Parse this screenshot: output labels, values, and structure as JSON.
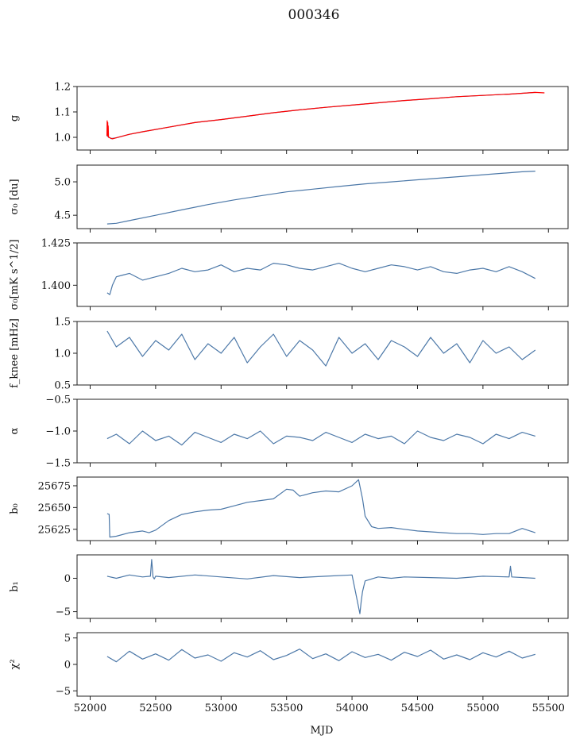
{
  "chart_data": {
    "type": "line",
    "title": "000346",
    "xlabel": "MJD",
    "xlim": [
      51900,
      55650
    ],
    "xticks": [
      52000,
      52500,
      53000,
      53500,
      54000,
      54500,
      55000,
      55500
    ],
    "series_color": "#4c78a8",
    "overlay_color": "#ff0000",
    "panels": [
      {
        "ylabel": "g",
        "ylim": [
          0.95,
          1.2
        ],
        "yticks": [
          "1.0",
          "1.1",
          "1.2"
        ],
        "ytick_values": [
          1.0,
          1.1,
          1.2
        ],
        "series": [
          {
            "color": "#4c78a8",
            "x": [
              52130,
              52160,
              52200,
              52300,
              52400,
              52600,
              52800,
              53000,
              53200,
              53400,
              53600,
              53800,
              54000,
              54200,
              54400,
              54600,
              54800,
              55000,
              55200,
              55400
            ],
            "y": [
              1.005,
              0.995,
              0.998,
              1.012,
              1.022,
              1.04,
              1.058,
              1.07,
              1.083,
              1.097,
              1.108,
              1.118,
              1.127,
              1.136,
              1.145,
              1.152,
              1.16,
              1.165,
              1.17,
              1.177
            ]
          },
          {
            "color": "#ff0000",
            "x": [
              52128,
              52130,
              52132,
              52134,
              52136,
              52138,
              52140,
              52150,
              52170,
              52200,
              52300,
              52400,
              52600,
              52800,
              53000,
              53200,
              53400,
              53600,
              53800,
              54000,
              54200,
              54400,
              54600,
              54800,
              55000,
              55200,
              55400,
              55470
            ],
            "y": [
              1.005,
              1.065,
              1.01,
              1.058,
              1.005,
              1.045,
              1.0,
              0.998,
              0.994,
              0.998,
              1.012,
              1.022,
              1.04,
              1.058,
              1.07,
              1.083,
              1.097,
              1.108,
              1.118,
              1.127,
              1.136,
              1.145,
              1.152,
              1.16,
              1.165,
              1.17,
              1.177,
              1.175
            ]
          }
        ]
      },
      {
        "ylabel": "σ₀ [du]",
        "ylim": [
          4.3,
          5.25
        ],
        "yticks": [
          "4.5",
          "5.0"
        ],
        "ytick_values": [
          4.5,
          5.0
        ],
        "series": [
          {
            "color": "#4c78a8",
            "x": [
              52130,
              52200,
              52300,
              52500,
              52700,
              52900,
              53100,
              53300,
              53500,
              53700,
              53900,
              54100,
              54300,
              54500,
              54700,
              54900,
              55100,
              55300,
              55400
            ],
            "y": [
              4.37,
              4.38,
              4.42,
              4.5,
              4.58,
              4.66,
              4.73,
              4.79,
              4.85,
              4.89,
              4.93,
              4.97,
              5.0,
              5.03,
              5.06,
              5.09,
              5.12,
              5.15,
              5.16
            ]
          }
        ]
      },
      {
        "ylabel": "σ₀[mK s^1/2]",
        "ylim": [
          1.3875,
          1.425
        ],
        "yticks": [
          "1.400",
          "1.425"
        ],
        "ytick_values": [
          1.4,
          1.425
        ],
        "series": [
          {
            "color": "#4c78a8",
            "x": [
              52130,
              52150,
              52170,
              52200,
              52250,
              52300,
              52400,
              52500,
              52600,
              52700,
              52800,
              52900,
              53000,
              53100,
              53200,
              53300,
              53400,
              53500,
              53600,
              53700,
              53800,
              53900,
              54000,
              54100,
              54200,
              54300,
              54400,
              54500,
              54600,
              54700,
              54800,
              54900,
              55000,
              55100,
              55200,
              55300,
              55400
            ],
            "y": [
              1.3955,
              1.3945,
              1.4,
              1.405,
              1.406,
              1.407,
              1.403,
              1.405,
              1.407,
              1.41,
              1.408,
              1.409,
              1.412,
              1.408,
              1.41,
              1.409,
              1.413,
              1.412,
              1.41,
              1.409,
              1.411,
              1.413,
              1.41,
              1.408,
              1.41,
              1.412,
              1.411,
              1.409,
              1.411,
              1.408,
              1.407,
              1.409,
              1.41,
              1.408,
              1.411,
              1.408,
              1.404
            ]
          }
        ]
      },
      {
        "ylabel": "f_knee [mHz]",
        "ylim": [
          0.5,
          1.5
        ],
        "yticks": [
          "0.5",
          "1.0",
          "1.5"
        ],
        "ytick_values": [
          0.5,
          1.0,
          1.5
        ],
        "series": [
          {
            "color": "#4c78a8",
            "x": [
              52130,
              52200,
              52300,
              52400,
              52500,
              52600,
              52700,
              52800,
              52900,
              53000,
              53100,
              53200,
              53300,
              53400,
              53500,
              53600,
              53700,
              53800,
              53900,
              54000,
              54100,
              54200,
              54300,
              54400,
              54500,
              54600,
              54700,
              54800,
              54900,
              55000,
              55100,
              55200,
              55300,
              55400
            ],
            "y": [
              1.35,
              1.1,
              1.25,
              0.95,
              1.2,
              1.05,
              1.3,
              0.9,
              1.15,
              1.0,
              1.25,
              0.85,
              1.1,
              1.3,
              0.95,
              1.2,
              1.05,
              0.8,
              1.25,
              1.0,
              1.15,
              0.9,
              1.2,
              1.1,
              0.95,
              1.25,
              1.0,
              1.15,
              0.85,
              1.2,
              1.0,
              1.1,
              0.9,
              1.05
            ]
          }
        ]
      },
      {
        "ylabel": "α",
        "ylim": [
          -1.5,
          -0.5
        ],
        "yticks": [
          "−1.5",
          "−1.0",
          "−0.5"
        ],
        "ytick_values": [
          -1.5,
          -1.0,
          -0.5
        ],
        "series": [
          {
            "color": "#4c78a8",
            "x": [
              52130,
              52200,
              52300,
              52400,
              52500,
              52600,
              52700,
              52800,
              52900,
              53000,
              53100,
              53200,
              53300,
              53400,
              53500,
              53600,
              53700,
              53800,
              53900,
              54000,
              54100,
              54200,
              54300,
              54400,
              54500,
              54600,
              54700,
              54800,
              54900,
              55000,
              55100,
              55200,
              55300,
              55400
            ],
            "y": [
              -1.12,
              -1.05,
              -1.2,
              -1.0,
              -1.15,
              -1.08,
              -1.22,
              -1.02,
              -1.1,
              -1.18,
              -1.05,
              -1.12,
              -1.0,
              -1.2,
              -1.08,
              -1.1,
              -1.15,
              -1.02,
              -1.1,
              -1.18,
              -1.05,
              -1.12,
              -1.08,
              -1.2,
              -1.0,
              -1.1,
              -1.15,
              -1.05,
              -1.1,
              -1.2,
              -1.05,
              -1.12,
              -1.02,
              -1.08
            ]
          }
        ]
      },
      {
        "ylabel": "b₀",
        "ylim": [
          25612,
          25685
        ],
        "yticks": [
          "25625",
          "25650",
          "25675"
        ],
        "ytick_values": [
          25625,
          25650,
          25675
        ],
        "series": [
          {
            "color": "#4c78a8",
            "x": [
              52130,
              52145,
              52150,
              52200,
              52300,
              52400,
              52450,
              52500,
              52600,
              52700,
              52800,
              52900,
              53000,
              53100,
              53200,
              53300,
              53400,
              53500,
              53550,
              53600,
              53700,
              53800,
              53900,
              54000,
              54050,
              54080,
              54100,
              54150,
              54200,
              54300,
              54400,
              54500,
              54600,
              54700,
              54800,
              54900,
              55000,
              55100,
              55200,
              55300,
              55400
            ],
            "y": [
              25643,
              25642,
              25616,
              25617,
              25621,
              25623,
              25621,
              25624,
              25635,
              25642,
              25645,
              25647,
              25648,
              25652,
              25656,
              25658,
              25660,
              25671,
              25670,
              25663,
              25667,
              25669,
              25668,
              25675,
              25682,
              25660,
              25640,
              25628,
              25626,
              25627,
              25625,
              25623,
              25622,
              25621,
              25620,
              25620,
              25619,
              25620,
              25620,
              25626,
              25621
            ]
          }
        ]
      },
      {
        "ylabel": "b₁",
        "ylim": [
          -6,
          3.5
        ],
        "yticks": [
          "−5",
          "0"
        ],
        "ytick_values": [
          -5,
          0
        ],
        "series": [
          {
            "color": "#4c78a8",
            "x": [
              52130,
              52200,
              52300,
              52400,
              52460,
              52470,
              52480,
              52490,
              52500,
              52600,
              52800,
              53000,
              53200,
              53400,
              53600,
              53800,
              54000,
              54060,
              54070,
              54080,
              54090,
              54100,
              54150,
              54200,
              54300,
              54400,
              54600,
              54800,
              55000,
              55200,
              55210,
              55220,
              55400
            ],
            "y": [
              0.3,
              0.0,
              0.5,
              0.2,
              0.3,
              2.8,
              0.2,
              -0.1,
              0.3,
              0.1,
              0.5,
              0.2,
              -0.1,
              0.4,
              0.1,
              0.3,
              0.5,
              -5.3,
              -3.5,
              -2.0,
              -1.2,
              -0.4,
              -0.1,
              0.2,
              0.0,
              0.2,
              0.1,
              0.0,
              0.3,
              0.2,
              1.8,
              0.2,
              0.0
            ]
          }
        ]
      },
      {
        "ylabel": "χ²",
        "ylim": [
          -6,
          6
        ],
        "yticks": [
          "−5",
          "0",
          "5"
        ],
        "ytick_values": [
          -5,
          0,
          5
        ],
        "series": [
          {
            "color": "#4c78a8",
            "x": [
              52130,
              52200,
              52300,
              52400,
              52500,
              52600,
              52700,
              52800,
              52900,
              53000,
              53100,
              53200,
              53300,
              53400,
              53500,
              53600,
              53700,
              53800,
              53900,
              54000,
              54100,
              54200,
              54300,
              54400,
              54500,
              54600,
              54700,
              54800,
              54900,
              55000,
              55100,
              55200,
              55300,
              55400
            ],
            "y": [
              1.5,
              0.5,
              2.5,
              1.0,
              2.0,
              0.8,
              2.8,
              1.2,
              1.8,
              0.6,
              2.2,
              1.4,
              2.6,
              0.9,
              1.7,
              2.9,
              1.1,
              2.0,
              0.7,
              2.4,
              1.3,
              1.9,
              0.8,
              2.3,
              1.5,
              2.7,
              1.0,
              1.8,
              0.9,
              2.2,
              1.4,
              2.5,
              1.2,
              1.9
            ]
          }
        ]
      }
    ]
  }
}
